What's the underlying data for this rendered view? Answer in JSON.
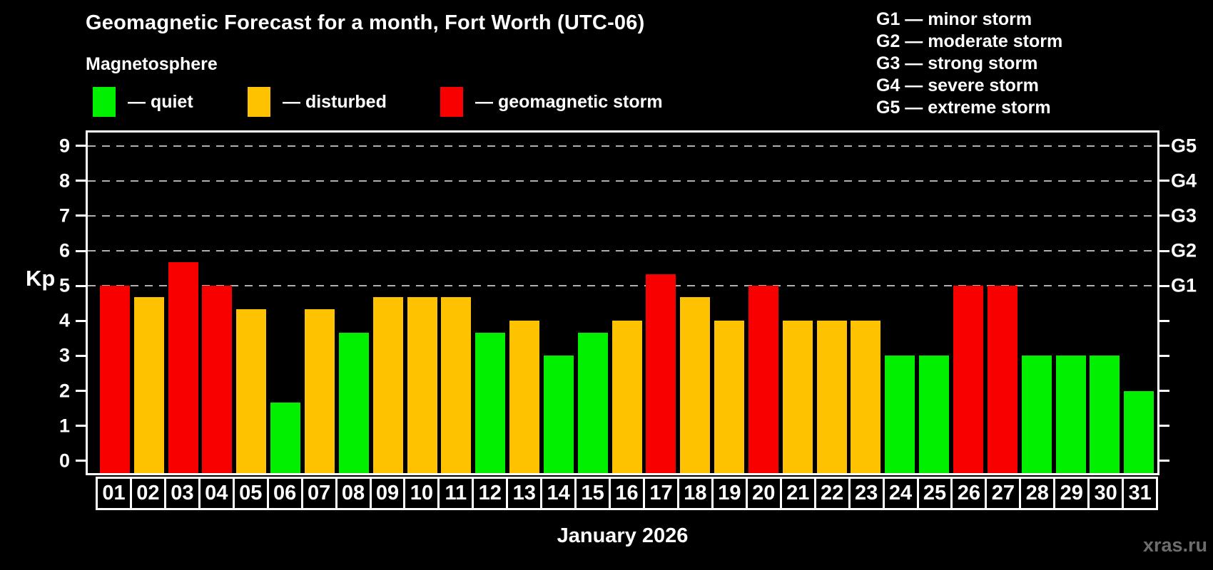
{
  "header": {
    "title": "Geomagnetic Forecast for a month, Fort Worth (UTC-06)",
    "subtitle": "Magnetosphere"
  },
  "legend": {
    "items": [
      {
        "id": "quiet",
        "label": "— quiet",
        "color": "#00f000"
      },
      {
        "id": "disturbed",
        "label": "— disturbed",
        "color": "#ffc200"
      },
      {
        "id": "storm",
        "label": "— geomagnetic storm",
        "color": "#f80000"
      }
    ]
  },
  "g_legend": {
    "lines": [
      "G1 — minor storm",
      "G2 — moderate storm",
      "G3 — strong storm",
      "G4 — severe storm",
      "G5 — extreme storm"
    ]
  },
  "y_axis": {
    "label": "Kp",
    "ticks": [
      0,
      1,
      2,
      3,
      4,
      5,
      6,
      7,
      8,
      9
    ]
  },
  "right_axis": {
    "labels": [
      {
        "kp": 5,
        "text": "G1"
      },
      {
        "kp": 6,
        "text": "G2"
      },
      {
        "kp": 7,
        "text": "G3"
      },
      {
        "kp": 8,
        "text": "G4"
      },
      {
        "kp": 9,
        "text": "G5"
      }
    ]
  },
  "x_axis": {
    "title": "January 2026"
  },
  "watermark": "xras.ru",
  "colors": {
    "background": "#000000",
    "text": "#ffffff",
    "frame": "#ffffff",
    "grid": "#b0b0b0",
    "watermark": "#6d6d6d",
    "quiet": "#00f000",
    "disturbed": "#ffc200",
    "storm": "#f80000"
  },
  "chart_data": {
    "type": "bar",
    "title": "Geomagnetic Forecast for a month, Fort Worth (UTC-06)",
    "xlabel": "January 2026",
    "ylabel": "Kp",
    "ylim": [
      0,
      9
    ],
    "grid": "dashed horizontal at Kp 5-9",
    "gridlines_at": [
      5,
      6,
      7,
      8,
      9
    ],
    "legend_position": "top",
    "categories": [
      "01",
      "02",
      "03",
      "04",
      "05",
      "06",
      "07",
      "08",
      "09",
      "10",
      "11",
      "12",
      "13",
      "14",
      "15",
      "16",
      "17",
      "18",
      "19",
      "20",
      "21",
      "22",
      "23",
      "24",
      "25",
      "26",
      "27",
      "28",
      "29",
      "30",
      "31"
    ],
    "values": [
      5.0,
      4.67,
      5.67,
      5.0,
      4.33,
      1.67,
      4.33,
      3.67,
      4.67,
      4.67,
      4.67,
      3.67,
      4.0,
      3.0,
      3.67,
      4.0,
      5.33,
      4.67,
      4.0,
      5.0,
      4.0,
      4.0,
      4.0,
      3.0,
      3.0,
      5.0,
      5.0,
      3.0,
      3.0,
      3.0,
      2.0
    ],
    "statuses": [
      "storm",
      "disturbed",
      "storm",
      "storm",
      "disturbed",
      "quiet",
      "disturbed",
      "quiet",
      "disturbed",
      "disturbed",
      "disturbed",
      "quiet",
      "disturbed",
      "quiet",
      "quiet",
      "disturbed",
      "storm",
      "disturbed",
      "disturbed",
      "storm",
      "disturbed",
      "disturbed",
      "disturbed",
      "quiet",
      "quiet",
      "storm",
      "storm",
      "quiet",
      "quiet",
      "quiet",
      "quiet"
    ],
    "status_rule": {
      "quiet": "Kp < 4",
      "disturbed": "4 <= Kp < 5",
      "storm": "Kp >= 5"
    }
  }
}
